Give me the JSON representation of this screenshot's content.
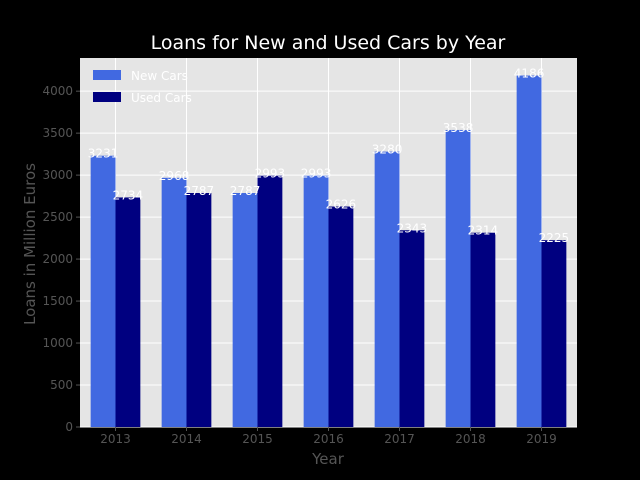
{
  "chart_data": {
    "type": "bar",
    "title": "Loans for New and Used Cars by Year",
    "xlabel": "Year",
    "ylabel": "Loans in Million Euros",
    "categories": [
      "2013",
      "2014",
      "2015",
      "2016",
      "2017",
      "2018",
      "2019"
    ],
    "series": [
      {
        "name": "New Cars",
        "color": "#4169e1",
        "values": [
          3231,
          2968,
          2787,
          2993,
          3280,
          3538,
          4186
        ]
      },
      {
        "name": "Used Cars",
        "color": "#000080",
        "values": [
          2734,
          2787,
          2993,
          2626,
          2343,
          2314,
          2225
        ]
      }
    ],
    "ylim": [
      0,
      4395
    ],
    "yticks": [
      0,
      500,
      1000,
      1500,
      2000,
      2500,
      3000,
      3500,
      4000
    ],
    "grid": true,
    "legend": "top-left",
    "plot_background": "#e5e5e5"
  }
}
